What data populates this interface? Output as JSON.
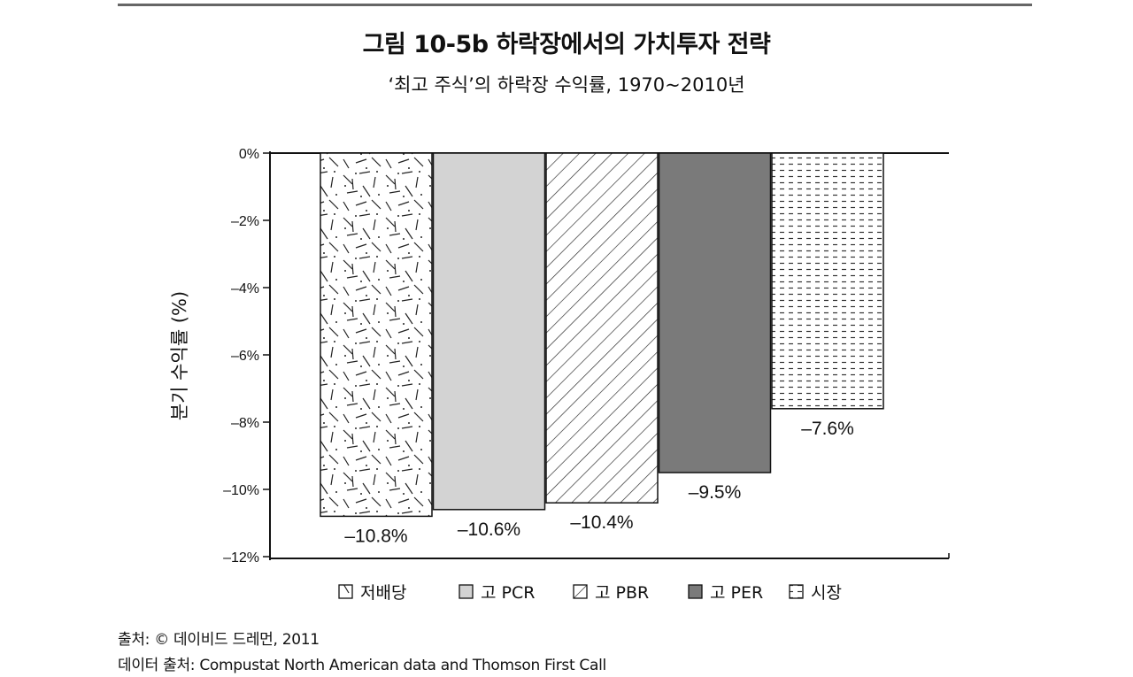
{
  "figure": {
    "title": "그림 10-5b  하락장에서의 가치투자 전략",
    "subtitle": "‘최고 주식’의 하락장 수익률, 1970~2010년"
  },
  "chart_data": {
    "type": "bar",
    "ylabel": "분기 수익률 (%)",
    "ylim": [
      -12,
      0
    ],
    "yticks": [
      {
        "value": 0,
        "label": "0%"
      },
      {
        "value": -2,
        "label": "–2%"
      },
      {
        "value": -4,
        "label": "–4%"
      },
      {
        "value": -6,
        "label": "–6%"
      },
      {
        "value": -8,
        "label": "–8%"
      },
      {
        "value": -10,
        "label": "–10%"
      },
      {
        "value": -12,
        "label": "–12%"
      }
    ],
    "legend_position": "bottom",
    "series": [
      {
        "name": "저배당",
        "value": -10.8,
        "label": "–10.8%",
        "pattern": "dashes-dots",
        "color": "#ffffff"
      },
      {
        "name": "고 PCR",
        "value": -10.6,
        "label": "–10.6%",
        "pattern": "solid",
        "color": "#d3d3d3"
      },
      {
        "name": "고 PBR",
        "value": -10.4,
        "label": "–10.4%",
        "pattern": "diagonal",
        "color": "#ffffff"
      },
      {
        "name": "고 PER",
        "value": -9.5,
        "label": "–9.5%",
        "pattern": "solid",
        "color": "#7a7a7a"
      },
      {
        "name": "시장",
        "value": -7.6,
        "label": "–7.6%",
        "pattern": "horizontal-dashes",
        "color": "#ffffff"
      }
    ]
  },
  "source": {
    "line1": "출처: © 데이비드 드레먼, 2011",
    "line2": "데이터 출처: Compustat North American data and Thomson First Call"
  }
}
